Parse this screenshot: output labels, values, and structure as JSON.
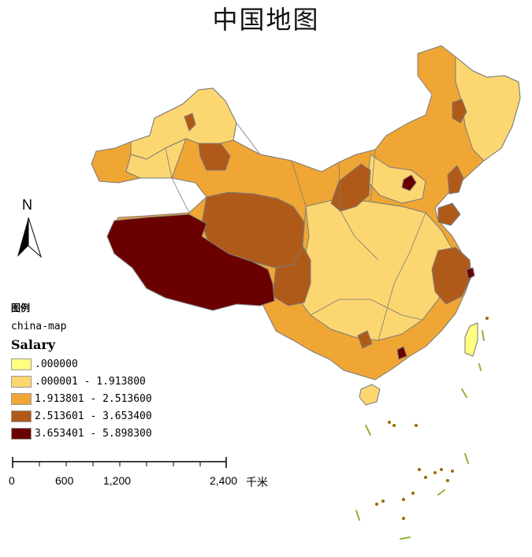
{
  "title": "中国地图",
  "north_arrow": {
    "letter": "N"
  },
  "legend": {
    "heading": "图例",
    "layer_name": "china-map",
    "field_name": "Salary",
    "classes": [
      {
        "label": ".000000",
        "color": "#ffff80"
      },
      {
        "label": ".000001 - 1.913800",
        "color": "#fcd670"
      },
      {
        "label": "1.913801 - 2.513600",
        "color": "#f0a634"
      },
      {
        "label": "2.513601 - 3.653400",
        "color": "#b05a1a"
      },
      {
        "label": "3.653401 - 5.898300",
        "color": "#6b0000"
      }
    ]
  },
  "scale_bar": {
    "labels": [
      "0",
      "600",
      "1,200",
      "2,400"
    ],
    "unit": "千米"
  },
  "colors": {
    "boundary": "#7a7a7a",
    "island_green": "#8db33a",
    "island_brown": "#9a6a00"
  }
}
